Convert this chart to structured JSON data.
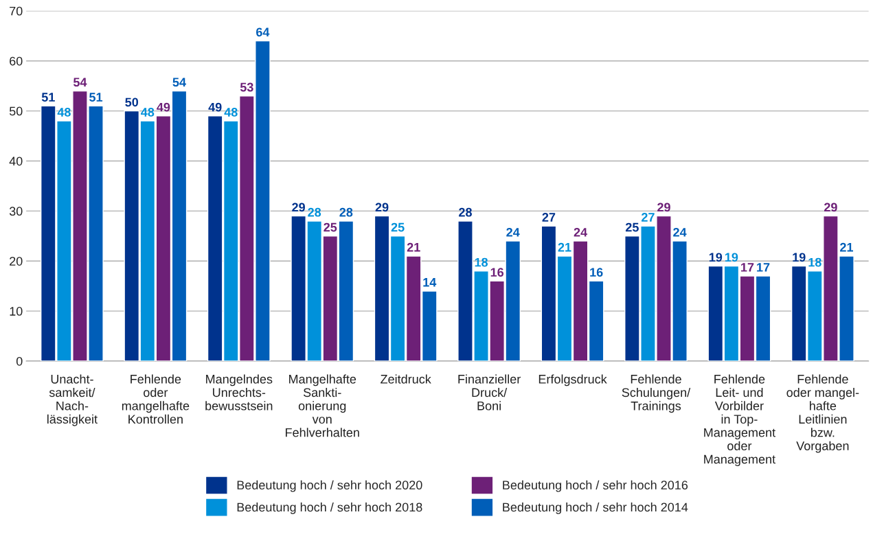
{
  "chart_data": {
    "type": "bar",
    "categories": [
      "Unacht-\nsamkeit/\nNach-\nlässigkeit",
      "Fehlende\noder\nmangelhafte\nKontrollen",
      "Mangelndes\nUnrechts-\nbewusstsein",
      "Mangelhafte\nSankti-\nonierung\nvon\nFehlverhalten",
      "Zeitdruck",
      "Finanzieller\nDruck/\nBoni",
      "Erfolgsdruck",
      "Fehlende\nSchulungen/\nTrainings",
      "Fehlende\nLeit- und\nVorbilder\nin Top-\nManagement\noder\nManagement",
      "Fehlende\noder mangel-\nhafte\nLeitlinien\nbzw.\nVorgaben"
    ],
    "series": [
      {
        "name": "Bedeutung hoch / sehr hoch 2020",
        "color": "#00338d",
        "values": [
          51,
          50,
          49,
          29,
          29,
          28,
          27,
          25,
          19,
          19
        ]
      },
      {
        "name": "Bedeutung hoch / sehr hoch 2018",
        "color": "#0091da",
        "values": [
          48,
          48,
          48,
          28,
          25,
          18,
          21,
          27,
          19,
          18
        ]
      },
      {
        "name": "Bedeutung hoch / sehr hoch 2016",
        "color": "#6d2077",
        "values": [
          54,
          49,
          53,
          25,
          21,
          16,
          24,
          29,
          17,
          29
        ]
      },
      {
        "name": "Bedeutung hoch / sehr hoch 2014",
        "color": "#005eb8",
        "values": [
          51,
          54,
          64,
          28,
          14,
          24,
          16,
          24,
          17,
          21
        ]
      }
    ],
    "ylim": [
      0,
      70
    ],
    "yticks": [
      0,
      10,
      20,
      30,
      40,
      50,
      60,
      70
    ],
    "grid": "y",
    "legend": "bottom",
    "data_labels": true
  }
}
